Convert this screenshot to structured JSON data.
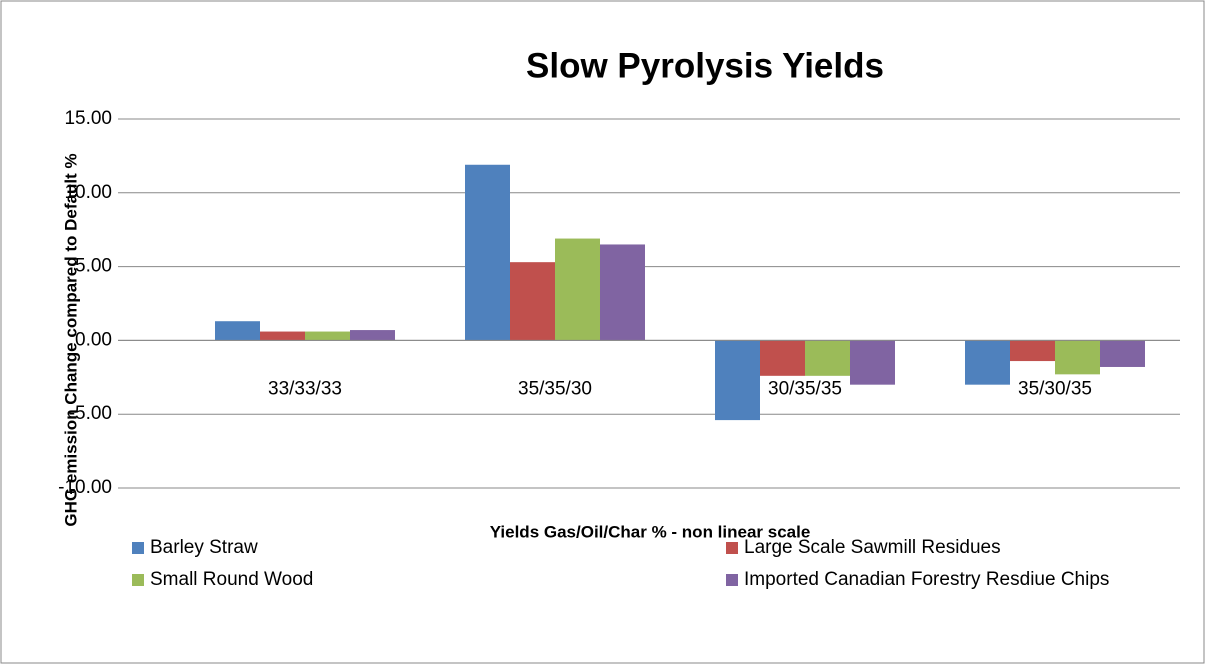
{
  "chart_data": {
    "type": "bar",
    "title": "Slow Pyrolysis Yields",
    "x_label": "Yields Gas/Oil/Char % - non linear scale",
    "y_label": "GHG emission  Change compared to Default %",
    "categories": [
      "33/33/33",
      "35/35/30",
      "30/35/35",
      "35/30/35"
    ],
    "series": [
      {
        "name": "Barley Straw",
        "color": "#4f81bd",
        "values": [
          1.3,
          11.9,
          -5.4,
          -3.0
        ]
      },
      {
        "name": "Large Scale Sawmill Residues",
        "color": "#c0504d",
        "values": [
          0.6,
          5.3,
          -2.4,
          -1.4
        ]
      },
      {
        "name": "Small Round Wood",
        "color": "#9bbb59",
        "values": [
          0.6,
          6.9,
          -2.4,
          -2.3
        ]
      },
      {
        "name": "Imported Canadian Forestry Resdiue Chips",
        "color": "#8064a2",
        "values": [
          0.7,
          6.5,
          -3.0,
          -1.8
        ]
      }
    ],
    "ylim": [
      -10,
      15
    ],
    "yticks": [
      {
        "value": -10,
        "label": "-10.00"
      },
      {
        "value": -5,
        "label": "-5.00"
      },
      {
        "value": 0,
        "label": "0.00"
      },
      {
        "value": 5,
        "label": "5.00"
      },
      {
        "value": 10,
        "label": "10.00"
      },
      {
        "value": 15,
        "label": "15.00"
      }
    ],
    "grid": true,
    "legend": "bottom"
  }
}
